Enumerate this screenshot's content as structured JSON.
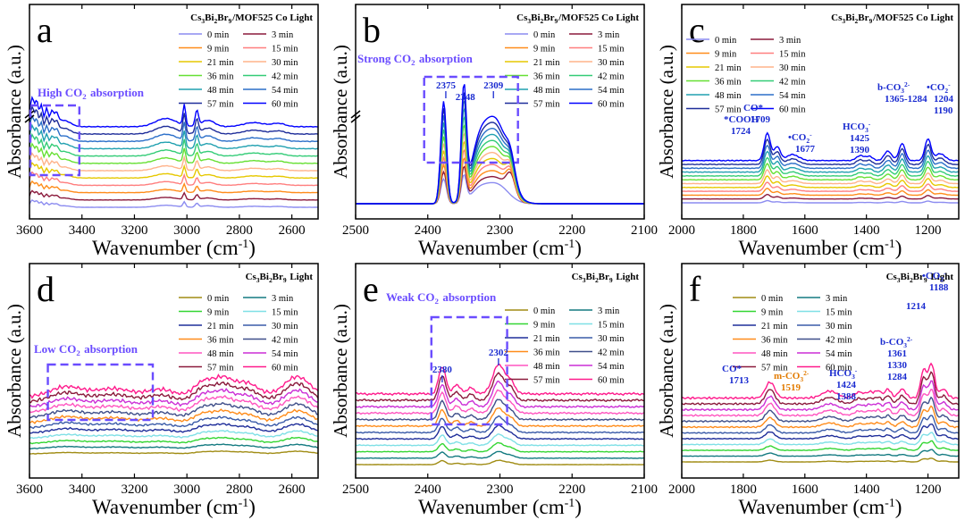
{
  "figure": {
    "axis_title_x": "Wavenumber (cm",
    "axis_title_x_sup": "-1",
    "axis_title_x_close": ")",
    "axis_title_y": "Absorbance (a.u.)"
  },
  "chart_data": [
    {
      "type": "line",
      "panel": "a",
      "title": "Cs3Bi2Br9/MOF525 Co Light",
      "xlim": [
        3600,
        2500
      ],
      "xticks": [
        3600,
        3400,
        3200,
        3000,
        2800,
        2600
      ],
      "yaxis_break": true,
      "series_names": [
        "0 min",
        "3 min",
        "9 min",
        "15 min",
        "21 min",
        "30 min",
        "36 min",
        "42 min",
        "48 min",
        "54 min",
        "57 min",
        "60 min"
      ],
      "series_colors": [
        "#8c8cf0",
        "#8b1a3c",
        "#ff8c1a",
        "#ff7f7f",
        "#e6c800",
        "#ffb38a",
        "#66e033",
        "#33cc77",
        "#20a0b0",
        "#2b6fc9",
        "#1f2e9a",
        "#0000ff"
      ],
      "features": [
        {
          "x": 3600,
          "shape": "sharp"
        },
        {
          "x": 3010,
          "shape": "sharp"
        },
        {
          "x": 2960,
          "shape": "sharp"
        }
      ],
      "annotations": [
        {
          "text": "High CO2 absorption"
        }
      ],
      "highlight_box": {
        "x": [
          3600,
          3410
        ]
      }
    },
    {
      "type": "line",
      "panel": "b",
      "title": "Cs3Bi2Br9/MOF525 Co Light",
      "xlim": [
        2500,
        2100
      ],
      "xticks": [
        2500,
        2400,
        2300,
        2200,
        2100
      ],
      "yaxis_break": true,
      "series_names": [
        "0 min",
        "3 min",
        "9 min",
        "15 min",
        "21 min",
        "30 min",
        "36 min",
        "42 min",
        "48 min",
        "54 min",
        "57 min",
        "60 min"
      ],
      "series_colors": [
        "#8c8cf0",
        "#8b1a3c",
        "#ff8c1a",
        "#ff7f7f",
        "#e6c800",
        "#ffb38a",
        "#66e033",
        "#33cc77",
        "#20a0b0",
        "#2b6fc9",
        "#1f2e9a",
        "#0000ff"
      ],
      "peaks": [
        {
          "x": 2375,
          "label": "2375"
        },
        {
          "x": 2348,
          "label": "2348"
        },
        {
          "x": 2309,
          "label": "2309"
        }
      ],
      "annotations": [
        {
          "text": "Strong CO2 absorption"
        }
      ],
      "highlight_box": {
        "x": [
          2405,
          2275
        ]
      }
    },
    {
      "type": "line",
      "panel": "c",
      "title": "Cs3Bi2Br9/MOF525 Co Light",
      "xlim": [
        2000,
        1100
      ],
      "xticks": [
        2000,
        1800,
        1600,
        1400,
        1200
      ],
      "series_names": [
        "0 min",
        "3 min",
        "9 min",
        "15 min",
        "21 min",
        "30 min",
        "36 min",
        "42 min",
        "48 min",
        "54 min",
        "57 min",
        "60 min"
      ],
      "series_colors": [
        "#8c8cf0",
        "#8b1a3c",
        "#ff8c1a",
        "#ff7f7f",
        "#e6c800",
        "#ffb38a",
        "#66e033",
        "#33cc77",
        "#20a0b0",
        "#2b6fc9",
        "#1f2e9a",
        "#0000ff"
      ],
      "peaks": [
        {
          "x": 1724
        },
        {
          "x": 1709
        },
        {
          "x": 1677
        },
        {
          "x": 1425
        },
        {
          "x": 1390
        },
        {
          "x": 1365
        },
        {
          "x": 1284
        },
        {
          "x": 1204
        },
        {
          "x": 1190
        }
      ],
      "annotations": [
        {
          "text": "*COOH",
          "sub": "1724"
        },
        {
          "text": "CO*",
          "sub": "1709"
        },
        {
          "text": "•CO2-",
          "sub": "1677"
        },
        {
          "text": "HCO3-",
          "sub": "1425",
          "sub2": "1390"
        },
        {
          "text": "b-CO32-",
          "sub": "1365-1284"
        },
        {
          "text": "•CO2-",
          "sub": "1204",
          "sub2": "1190"
        }
      ]
    },
    {
      "type": "line",
      "panel": "d",
      "title": "Cs3Bi2Br9 Light",
      "xlim": [
        3600,
        2500
      ],
      "xticks": [
        3600,
        3400,
        3200,
        3000,
        2800,
        2600
      ],
      "series_names": [
        "0 min",
        "3 min",
        "9 min",
        "15 min",
        "21 min",
        "30 min",
        "36 min",
        "42 min",
        "48 min",
        "54 min",
        "57 min",
        "60 min"
      ],
      "series_colors": [
        "#a08c14",
        "#137a80",
        "#33d633",
        "#7fe0e6",
        "#1f2e9a",
        "#3a5ba8",
        "#ff8c1a",
        "#3f4f8a",
        "#ff55c0",
        "#cc2fd6",
        "#8b1a3c",
        "#ff1a8c"
      ],
      "annotations": [
        {
          "text": "Low CO2 absorption"
        }
      ],
      "highlight_box": {
        "x": [
          3530,
          3130
        ]
      }
    },
    {
      "type": "line",
      "panel": "e",
      "title": "Cs3Bi2Br9 Light",
      "xlim": [
        2500,
        2100
      ],
      "xticks": [
        2500,
        2400,
        2300,
        2200,
        2100
      ],
      "series_names": [
        "0 min",
        "3 min",
        "9 min",
        "15 min",
        "21 min",
        "30 min",
        "36 min",
        "42 min",
        "48 min",
        "54 min",
        "57 min",
        "60 min"
      ],
      "series_colors": [
        "#a08c14",
        "#137a80",
        "#33d633",
        "#7fe0e6",
        "#1f2e9a",
        "#3a5ba8",
        "#ff8c1a",
        "#3f4f8a",
        "#ff55c0",
        "#cc2fd6",
        "#8b1a3c",
        "#ff1a8c"
      ],
      "peaks": [
        {
          "x": 2380,
          "label": "2380"
        },
        {
          "x": 2302,
          "label": "2302"
        }
      ],
      "annotations": [
        {
          "text": "Weak CO2 absorption"
        }
      ],
      "highlight_box": {
        "x": [
          2395,
          2290
        ]
      }
    },
    {
      "type": "line",
      "panel": "f",
      "title": "Cs3Bi2Br9 Light",
      "xlim": [
        2000,
        1100
      ],
      "xticks": [
        2000,
        1800,
        1600,
        1400,
        1200
      ],
      "series_names": [
        "0 min",
        "3 min",
        "9 min",
        "15 min",
        "21 min",
        "30 min",
        "36 min",
        "42 min",
        "48 min",
        "54 min",
        "57 min",
        "60 min"
      ],
      "series_colors": [
        "#a08c14",
        "#137a80",
        "#33d633",
        "#7fe0e6",
        "#1f2e9a",
        "#3a5ba8",
        "#ff8c1a",
        "#3f4f8a",
        "#ff55c0",
        "#cc2fd6",
        "#8b1a3c",
        "#ff1a8c"
      ],
      "peaks": [
        {
          "x": 1713
        },
        {
          "x": 1519
        },
        {
          "x": 1424
        },
        {
          "x": 1388
        },
        {
          "x": 1361
        },
        {
          "x": 1330
        },
        {
          "x": 1284
        },
        {
          "x": 1214
        },
        {
          "x": 1188
        }
      ],
      "annotations": [
        {
          "text": "CO*",
          "sub": "1713"
        },
        {
          "text": "m-CO32-",
          "sub": "1519"
        },
        {
          "text": "HCO3-",
          "sub": "1424",
          "sub2": "1388"
        },
        {
          "text": "b-CO32-",
          "sub": "1361",
          "sub2": "1330",
          "sub3": "1284"
        },
        {
          "text": "1214"
        },
        {
          "text": "•CO2-",
          "sub": "1188"
        }
      ]
    }
  ]
}
